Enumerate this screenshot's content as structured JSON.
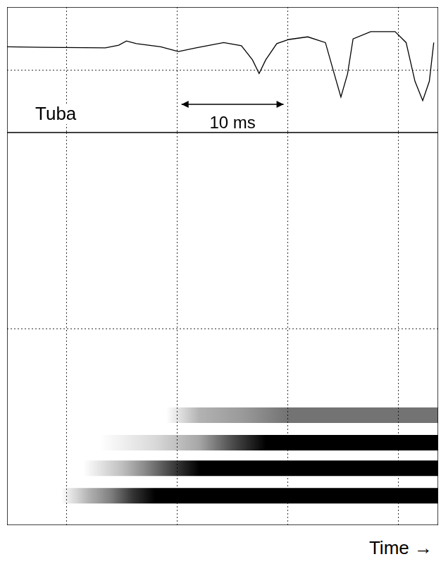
{
  "chart_data": [
    {
      "type": "line",
      "title": "Tuba",
      "x": [
        -5.4,
        -2.2,
        3.5,
        4.7,
        5.4,
        6.3,
        8.5,
        10.1,
        11.7,
        14.2,
        15.8,
        16.8,
        17.4,
        18.0,
        19.0,
        20.1,
        21.8,
        23.4,
        24.2,
        24.8,
        25.4,
        25.9,
        27.5,
        29.7,
        30.7,
        31.5,
        32.2,
        32.8,
        33.2
      ],
      "values": [
        0.04,
        0.03,
        0.02,
        0.07,
        0.15,
        0.1,
        0.04,
        -0.05,
        0.02,
        0.12,
        0.06,
        -0.21,
        -0.47,
        -0.21,
        0.1,
        0.18,
        0.23,
        0.12,
        -0.48,
        -0.92,
        -0.48,
        0.19,
        0.33,
        0.33,
        0.12,
        -0.62,
        -0.99,
        -0.62,
        0.12
      ],
      "color": "#000000",
      "xlim": [
        -5.4,
        33.6
      ],
      "xticks": [
        0,
        10,
        20,
        30
      ],
      "ylim": [
        -1.6,
        0.8
      ],
      "yticks": [
        -0.4
      ],
      "grid": true,
      "tick_labels": false,
      "annotations": [
        {
          "text": "10 ms",
          "x_start": 10,
          "x_end": 20
        }
      ]
    },
    {
      "type": "spectrogram",
      "x_label": "Time →",
      "series": [
        {
          "frequency": 0.15,
          "x": [
            -0.5,
            2,
            4,
            6,
            8,
            33.6
          ],
          "intensity": [
            0.0,
            0.3,
            0.5,
            0.8,
            1.0,
            1.0
          ]
        },
        {
          "frequency": 0.29,
          "x": [
            1.5,
            5,
            7,
            10,
            12,
            33.6
          ],
          "intensity": [
            0.0,
            0.25,
            0.45,
            0.8,
            1.0,
            1.0
          ]
        },
        {
          "frequency": 0.42,
          "x": [
            3,
            8,
            12,
            15,
            18,
            33.6
          ],
          "intensity": [
            0.0,
            0.15,
            0.35,
            0.7,
            1.0,
            1.0
          ]
        },
        {
          "frequency": 0.56,
          "x": [
            9,
            12,
            16,
            20,
            33.6
          ],
          "intensity": [
            0.0,
            0.3,
            0.4,
            0.55,
            0.55
          ]
        }
      ],
      "color": "#000000",
      "xlim": [
        -5.4,
        33.6
      ],
      "xticks": [
        0,
        10,
        20,
        30
      ],
      "ylim": [
        0,
        2
      ],
      "yticks": [
        1
      ],
      "grid": true,
      "tick_labels": false
    }
  ]
}
